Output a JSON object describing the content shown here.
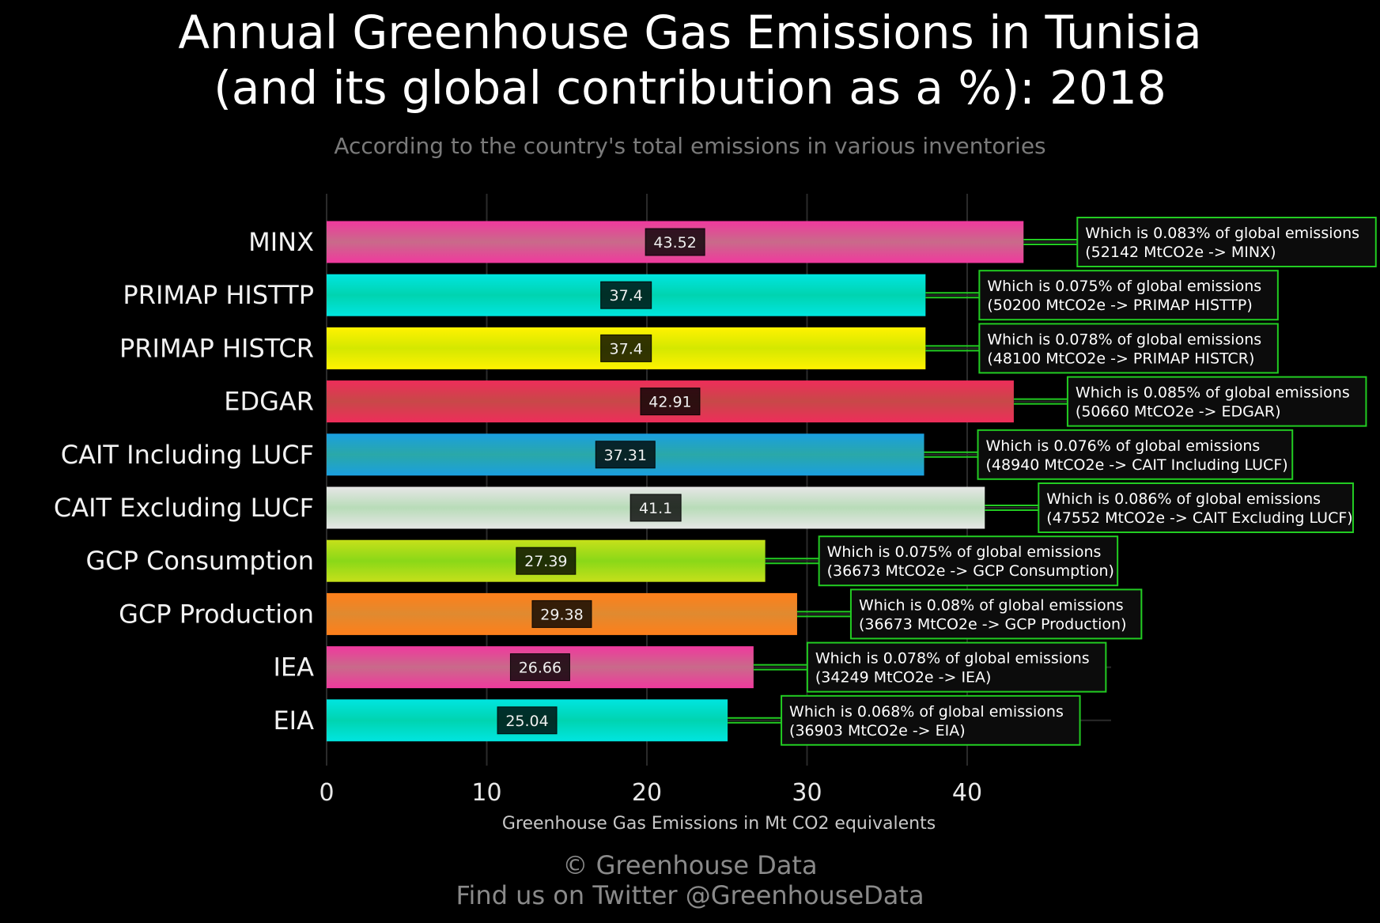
{
  "title_line1": "Annual Greenhouse Gas Emissions in Tunisia",
  "title_line2": "(and its global contribution as a %): 2018",
  "subtitle": "According to the country's total emissions in various inventories",
  "footer_line1": "© Greenhouse Data",
  "footer_line2": "Find us on Twitter @GreenhouseData",
  "chart_data": {
    "type": "bar",
    "orientation": "horizontal",
    "xlabel": "Greenhouse Gas Emissions in Mt CO2 equivalents",
    "ylabel": "",
    "xlim": [
      0,
      49
    ],
    "xticks": [
      0,
      10,
      20,
      30,
      40
    ],
    "grid": true,
    "categories": [
      "MINX",
      "PRIMAP HISTTP",
      "PRIMAP HISTCR",
      "EDGAR",
      "CAIT Including LUCF",
      "CAIT Excluding LUCF",
      "GCP Consumption",
      "GCP Production",
      "IEA",
      "EIA"
    ],
    "values": [
      43.52,
      37.4,
      37.4,
      42.91,
      37.31,
      41.1,
      27.39,
      29.38,
      26.66,
      25.04
    ],
    "value_labels": [
      "43.52",
      "37.4",
      "37.4",
      "42.91",
      "37.31",
      "41.1",
      "27.39",
      "29.38",
      "26.66",
      "25.04"
    ],
    "colors": [
      [
        "#f0399e",
        "#c96a8a"
      ],
      [
        "#00e5e0",
        "#00d4b0"
      ],
      [
        "#fff200",
        "#d4e800"
      ],
      [
        "#ee2d5a",
        "#c84848"
      ],
      [
        "#1a9fe0",
        "#2aa8a8"
      ],
      [
        "#e6e6e6",
        "#b8dcb8"
      ],
      [
        "#c6e01a",
        "#8ad818"
      ],
      [
        "#ff7f1a",
        "#e08a30"
      ],
      [
        "#f0399e",
        "#c96a8a"
      ],
      [
        "#00e5e0",
        "#00d4b0"
      ]
    ],
    "annotations": [
      {
        "line1": "Which is 0.083% of global emissions",
        "line2": "(52142 MtCO2e -> MINX)"
      },
      {
        "line1": "Which is 0.075% of global emissions",
        "line2": "(50200 MtCO2e -> PRIMAP HISTTP)"
      },
      {
        "line1": "Which is 0.078% of global emissions",
        "line2": "(48100 MtCO2e -> PRIMAP HISTCR)"
      },
      {
        "line1": "Which is 0.085% of global emissions",
        "line2": "(50660 MtCO2e -> EDGAR)"
      },
      {
        "line1": "Which is 0.076% of global emissions",
        "line2": "(48940 MtCO2e -> CAIT Including LUCF)"
      },
      {
        "line1": "Which is 0.086% of global emissions",
        "line2": "(47552 MtCO2e -> CAIT Excluding LUCF)"
      },
      {
        "line1": "Which is 0.075% of global emissions",
        "line2": "(36673 MtCO2e -> GCP Consumption)"
      },
      {
        "line1": "Which is 0.08% of global emissions",
        "line2": "(36673 MtCO2e -> GCP Production)"
      },
      {
        "line1": "Which is 0.078% of global emissions",
        "line2": "(34249 MtCO2e -> IEA)"
      },
      {
        "line1": "Which is 0.068% of global emissions",
        "line2": "(36903 MtCO2e -> EIA)"
      }
    ],
    "annotation_border_color": "#22cc22",
    "grid_color": "#2a2a2a"
  }
}
